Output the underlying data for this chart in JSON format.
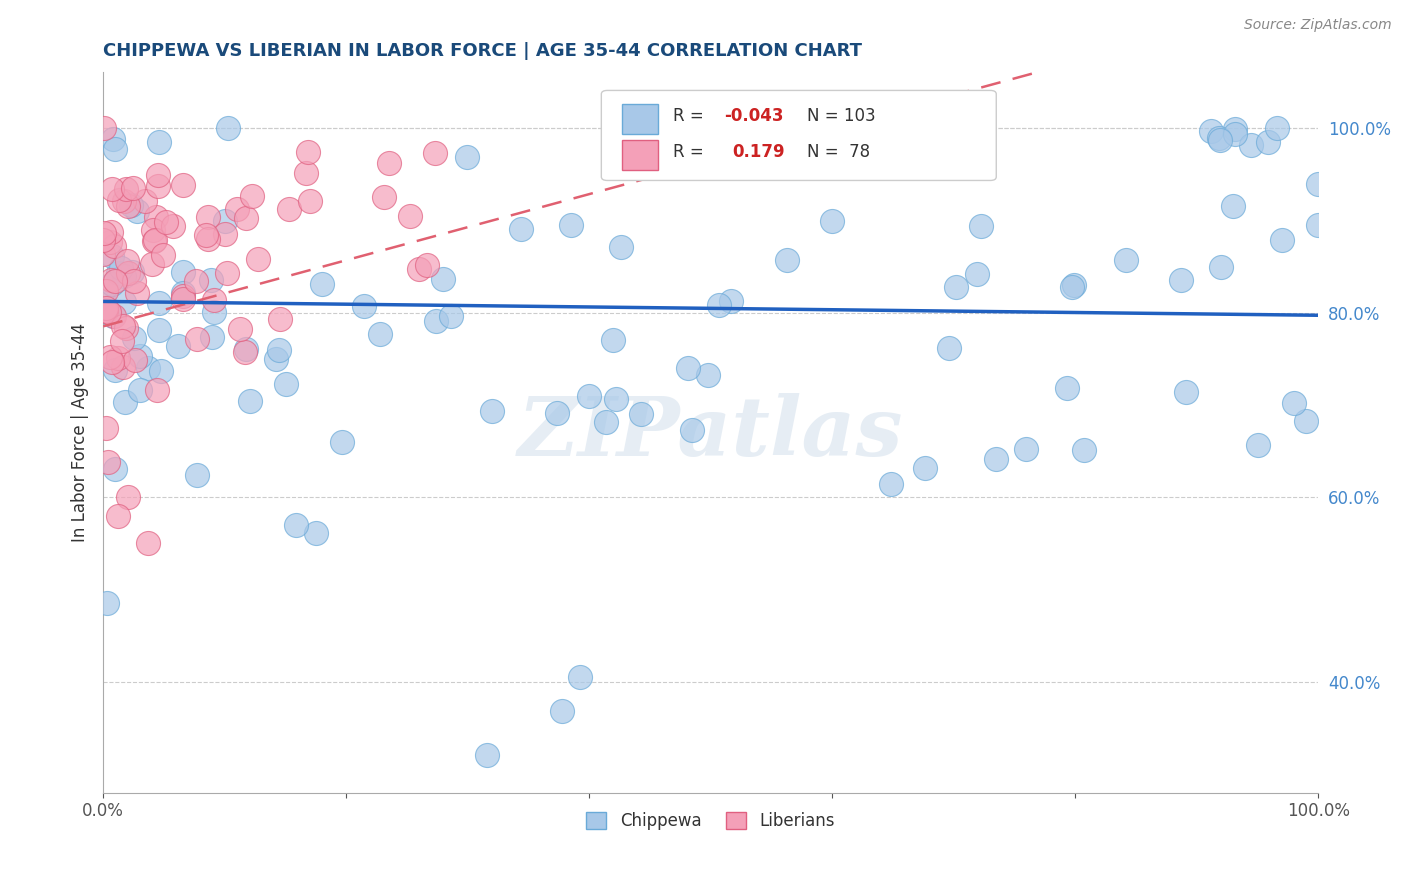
{
  "title": "CHIPPEWA VS LIBERIAN IN LABOR FORCE | AGE 35-44 CORRELATION CHART",
  "source_text": "Source: ZipAtlas.com",
  "ylabel": "In Labor Force | Age 35-44",
  "xlim": [
    0.0,
    1.0
  ],
  "ylim": [
    0.28,
    1.06
  ],
  "x_ticks": [
    0.0,
    0.2,
    0.4,
    0.6,
    0.8,
    1.0
  ],
  "x_tick_labels": [
    "0.0%",
    "",
    "",
    "",
    "",
    "100.0%"
  ],
  "y_ticks": [
    0.4,
    0.6,
    0.8,
    1.0
  ],
  "y_tick_labels": [
    "40.0%",
    "60.0%",
    "80.0%",
    "100.0%"
  ],
  "chippewa_color": "#a8c8e8",
  "chippewa_edge": "#6aaad8",
  "liberian_color": "#f4a0b8",
  "liberian_edge": "#e06080",
  "chippewa_R": "-0.043",
  "chippewa_N": "103",
  "liberian_R": "0.179",
  "liberian_N": "78",
  "watermark": "ZIPatlas",
  "trend_chip_color": "#2060c0",
  "trend_lib_color": "#e06070",
  "y_label_color": "#4488cc",
  "title_color": "#1a4a7a"
}
